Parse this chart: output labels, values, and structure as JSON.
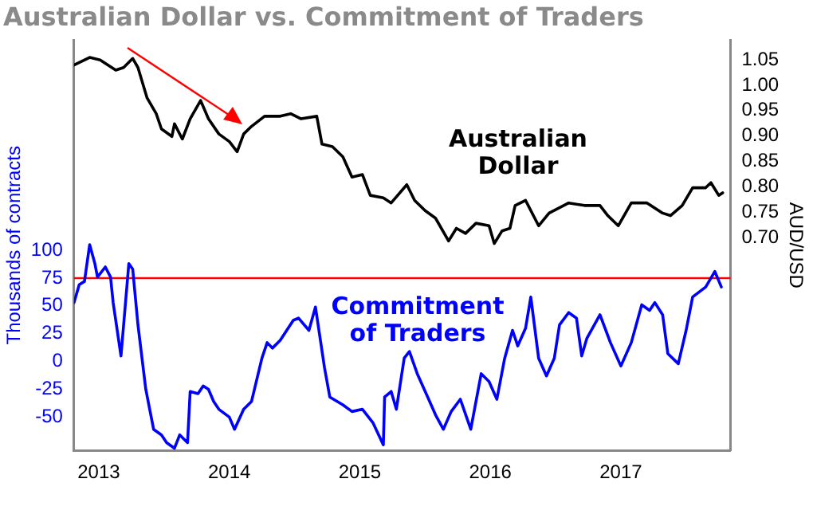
{
  "chart_data": {
    "type": "line",
    "title": "Australian Dollar vs. Commitment of Traders",
    "ylabel": "Thousands of contracts",
    "y2label": "AUD/USD",
    "xlim": [
      2012.81,
      2017.84
    ],
    "xticks": [
      2013,
      2014,
      2015,
      2016,
      2017
    ],
    "ylim": [
      -80,
      289
    ],
    "yticks": [
      -50,
      -25,
      0,
      25,
      50,
      75,
      100
    ],
    "y2lim": [
      0.28,
      1.089
    ],
    "y2ticks": [
      {
        "value": 0.7,
        "label": "0.70"
      },
      {
        "value": 0.75,
        "label": "0.75"
      },
      {
        "value": 0.8,
        "label": "0.80"
      },
      {
        "value": 0.85,
        "label": "0.85"
      },
      {
        "value": 0.9,
        "label": "0.90"
      },
      {
        "value": 0.95,
        "label": "0.95"
      },
      {
        "value": 1.0,
        "label": "1.00"
      },
      {
        "value": 1.05,
        "label": "1.05"
      }
    ],
    "grid": false,
    "legend": false,
    "marker": "none",
    "line_style": "solid",
    "ref_lines": [
      {
        "axis": "y",
        "value": 75,
        "color": "#ff0000"
      }
    ],
    "series": [
      {
        "name": "Australian Dollar",
        "color": "#000000",
        "axis": "y2",
        "x": [
          2012.81,
          2012.93,
          2013.01,
          2013.13,
          2013.19,
          2013.26,
          2013.3,
          2013.37,
          2013.44,
          2013.48,
          2013.56,
          2013.58,
          2013.64,
          2013.7,
          2013.78,
          2013.84,
          2013.92,
          2014.0,
          2014.06,
          2014.11,
          2014.17,
          2014.27,
          2014.39,
          2014.47,
          2014.55,
          2014.67,
          2014.71,
          2014.79,
          2014.87,
          2014.94,
          2015.02,
          2015.08,
          2015.18,
          2015.24,
          2015.36,
          2015.42,
          2015.5,
          2015.58,
          2015.68,
          2015.74,
          2015.81,
          2015.89,
          2015.99,
          2016.03,
          2016.09,
          2016.15,
          2016.19,
          2016.27,
          2016.37,
          2016.45,
          2016.6,
          2016.72,
          2016.84,
          2016.9,
          2016.98,
          2017.08,
          2017.2,
          2017.32,
          2017.38,
          2017.47,
          2017.55,
          2017.65,
          2017.69,
          2017.75,
          2017.78
        ],
        "values": [
          1.04,
          1.055,
          1.05,
          1.03,
          1.035,
          1.053,
          1.035,
          0.975,
          0.944,
          0.914,
          0.899,
          0.924,
          0.894,
          0.934,
          0.97,
          0.934,
          0.904,
          0.889,
          0.869,
          0.904,
          0.919,
          0.939,
          0.939,
          0.944,
          0.934,
          0.939,
          0.884,
          0.879,
          0.859,
          0.819,
          0.824,
          0.783,
          0.778,
          0.768,
          0.804,
          0.773,
          0.753,
          0.738,
          0.693,
          0.718,
          0.708,
          0.728,
          0.723,
          0.688,
          0.713,
          0.718,
          0.763,
          0.773,
          0.723,
          0.748,
          0.768,
          0.763,
          0.763,
          0.743,
          0.723,
          0.768,
          0.768,
          0.748,
          0.743,
          0.763,
          0.798,
          0.798,
          0.808,
          0.783,
          0.788
        ]
      },
      {
        "name": "Commitment of Traders",
        "color": "#0000ff",
        "axis": "y",
        "x": [
          2012.81,
          2012.85,
          2012.89,
          2012.93,
          2012.97,
          2012.99,
          2013.05,
          2013.09,
          2013.11,
          2013.17,
          2013.23,
          2013.26,
          2013.3,
          2013.36,
          2013.42,
          2013.48,
          2013.52,
          2013.58,
          2013.62,
          2013.68,
          2013.7,
          2013.76,
          2013.8,
          2013.84,
          2013.88,
          2013.92,
          2014.0,
          2014.04,
          2014.11,
          2014.17,
          2014.25,
          2014.29,
          2014.33,
          2014.39,
          2014.49,
          2014.53,
          2014.61,
          2014.66,
          2014.73,
          2014.77,
          2014.87,
          2014.94,
          2015.02,
          2015.1,
          2015.18,
          2015.19,
          2015.24,
          2015.28,
          2015.34,
          2015.38,
          2015.44,
          2015.52,
          2015.58,
          2015.64,
          2015.7,
          2015.77,
          2015.85,
          2015.93,
          2015.99,
          2016.05,
          2016.11,
          2016.17,
          2016.21,
          2016.27,
          2016.31,
          2016.37,
          2016.43,
          2016.49,
          2016.53,
          2016.6,
          2016.66,
          2016.7,
          2016.74,
          2016.84,
          2016.92,
          2017.0,
          2017.08,
          2017.16,
          2017.22,
          2017.26,
          2017.32,
          2017.36,
          2017.44,
          2017.5,
          2017.55,
          2017.65,
          2017.72,
          2017.77
        ],
        "values": [
          53,
          69,
          72,
          105,
          88,
          76,
          85,
          76,
          53,
          5,
          88,
          83,
          33,
          -25,
          -61,
          -66,
          -73,
          -78,
          -66,
          -73,
          -27,
          -29,
          -22,
          -25,
          -36,
          -43,
          -50,
          -61,
          -43,
          -36,
          3,
          17,
          12,
          19,
          37,
          39,
          28,
          49,
          -6,
          -32,
          -39,
          -45,
          -43,
          -55,
          -75,
          -32,
          -27,
          -43,
          3,
          9,
          -11,
          -32,
          -48,
          -61,
          -45,
          -34,
          -61,
          -11,
          -18,
          -34,
          3,
          28,
          14,
          30,
          58,
          3,
          -13,
          3,
          33,
          44,
          39,
          5,
          21,
          42,
          17,
          -4,
          17,
          51,
          46,
          53,
          42,
          7,
          -2,
          28,
          58,
          67,
          81,
          67
        ]
      }
    ]
  }
}
